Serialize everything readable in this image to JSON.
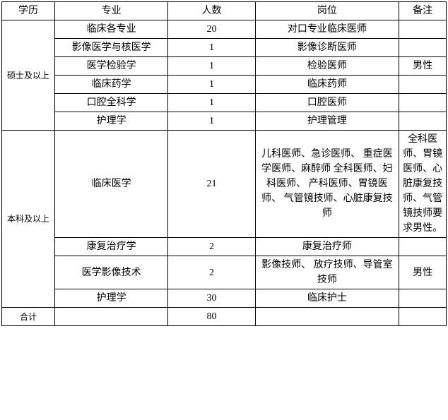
{
  "header": {
    "edu": "学历",
    "major": "专业",
    "count": "人数",
    "position": "岗位",
    "note": "备注"
  },
  "groups": [
    {
      "edu": "硕士及以上",
      "rows": [
        {
          "major": "临床各专业",
          "count": "20",
          "position": "对口专业临床医师",
          "note": ""
        },
        {
          "major": "影像医学与核医学",
          "count": "1",
          "position": "影像诊断医师",
          "note": ""
        },
        {
          "major": "医学检验学",
          "count": "1",
          "position": "检验医师",
          "note": "男性"
        },
        {
          "major": "临床药学",
          "count": "1",
          "position": "临床药师",
          "note": ""
        },
        {
          "major": "口腔全科学",
          "count": "1",
          "position": "口腔医师",
          "note": ""
        },
        {
          "major": "护理学",
          "count": "1",
          "position": "护理管理",
          "note": ""
        }
      ]
    },
    {
      "edu": "本科及以上",
      "rows": [
        {
          "major": "临床医学",
          "count": "21",
          "position": "儿科医师、急诊医师、\n重症医学医师、麻醉师\n全科医师、妇科医师、\n产科医师、胃镜医师、\n气管镜技师、心脏康复技师",
          "note": "全科医师、胃镜医师、心脏康复技师、气管镜技师要求男性。"
        },
        {
          "major": "康复治疗学",
          "count": "2",
          "position": "康复治疗师",
          "note": ""
        },
        {
          "major": "医学影像技术",
          "count": "2",
          "position": "影像技师、\n放疗技师、导管室技师",
          "note": "男性"
        },
        {
          "major": "护理学",
          "count": "30",
          "position": "临床护士",
          "note": ""
        }
      ]
    }
  ],
  "total": {
    "label": "合计",
    "count": "80"
  },
  "style": {
    "background": "#ffffff",
    "border": "#000000",
    "font": "SimSun",
    "fontSize": 14
  }
}
